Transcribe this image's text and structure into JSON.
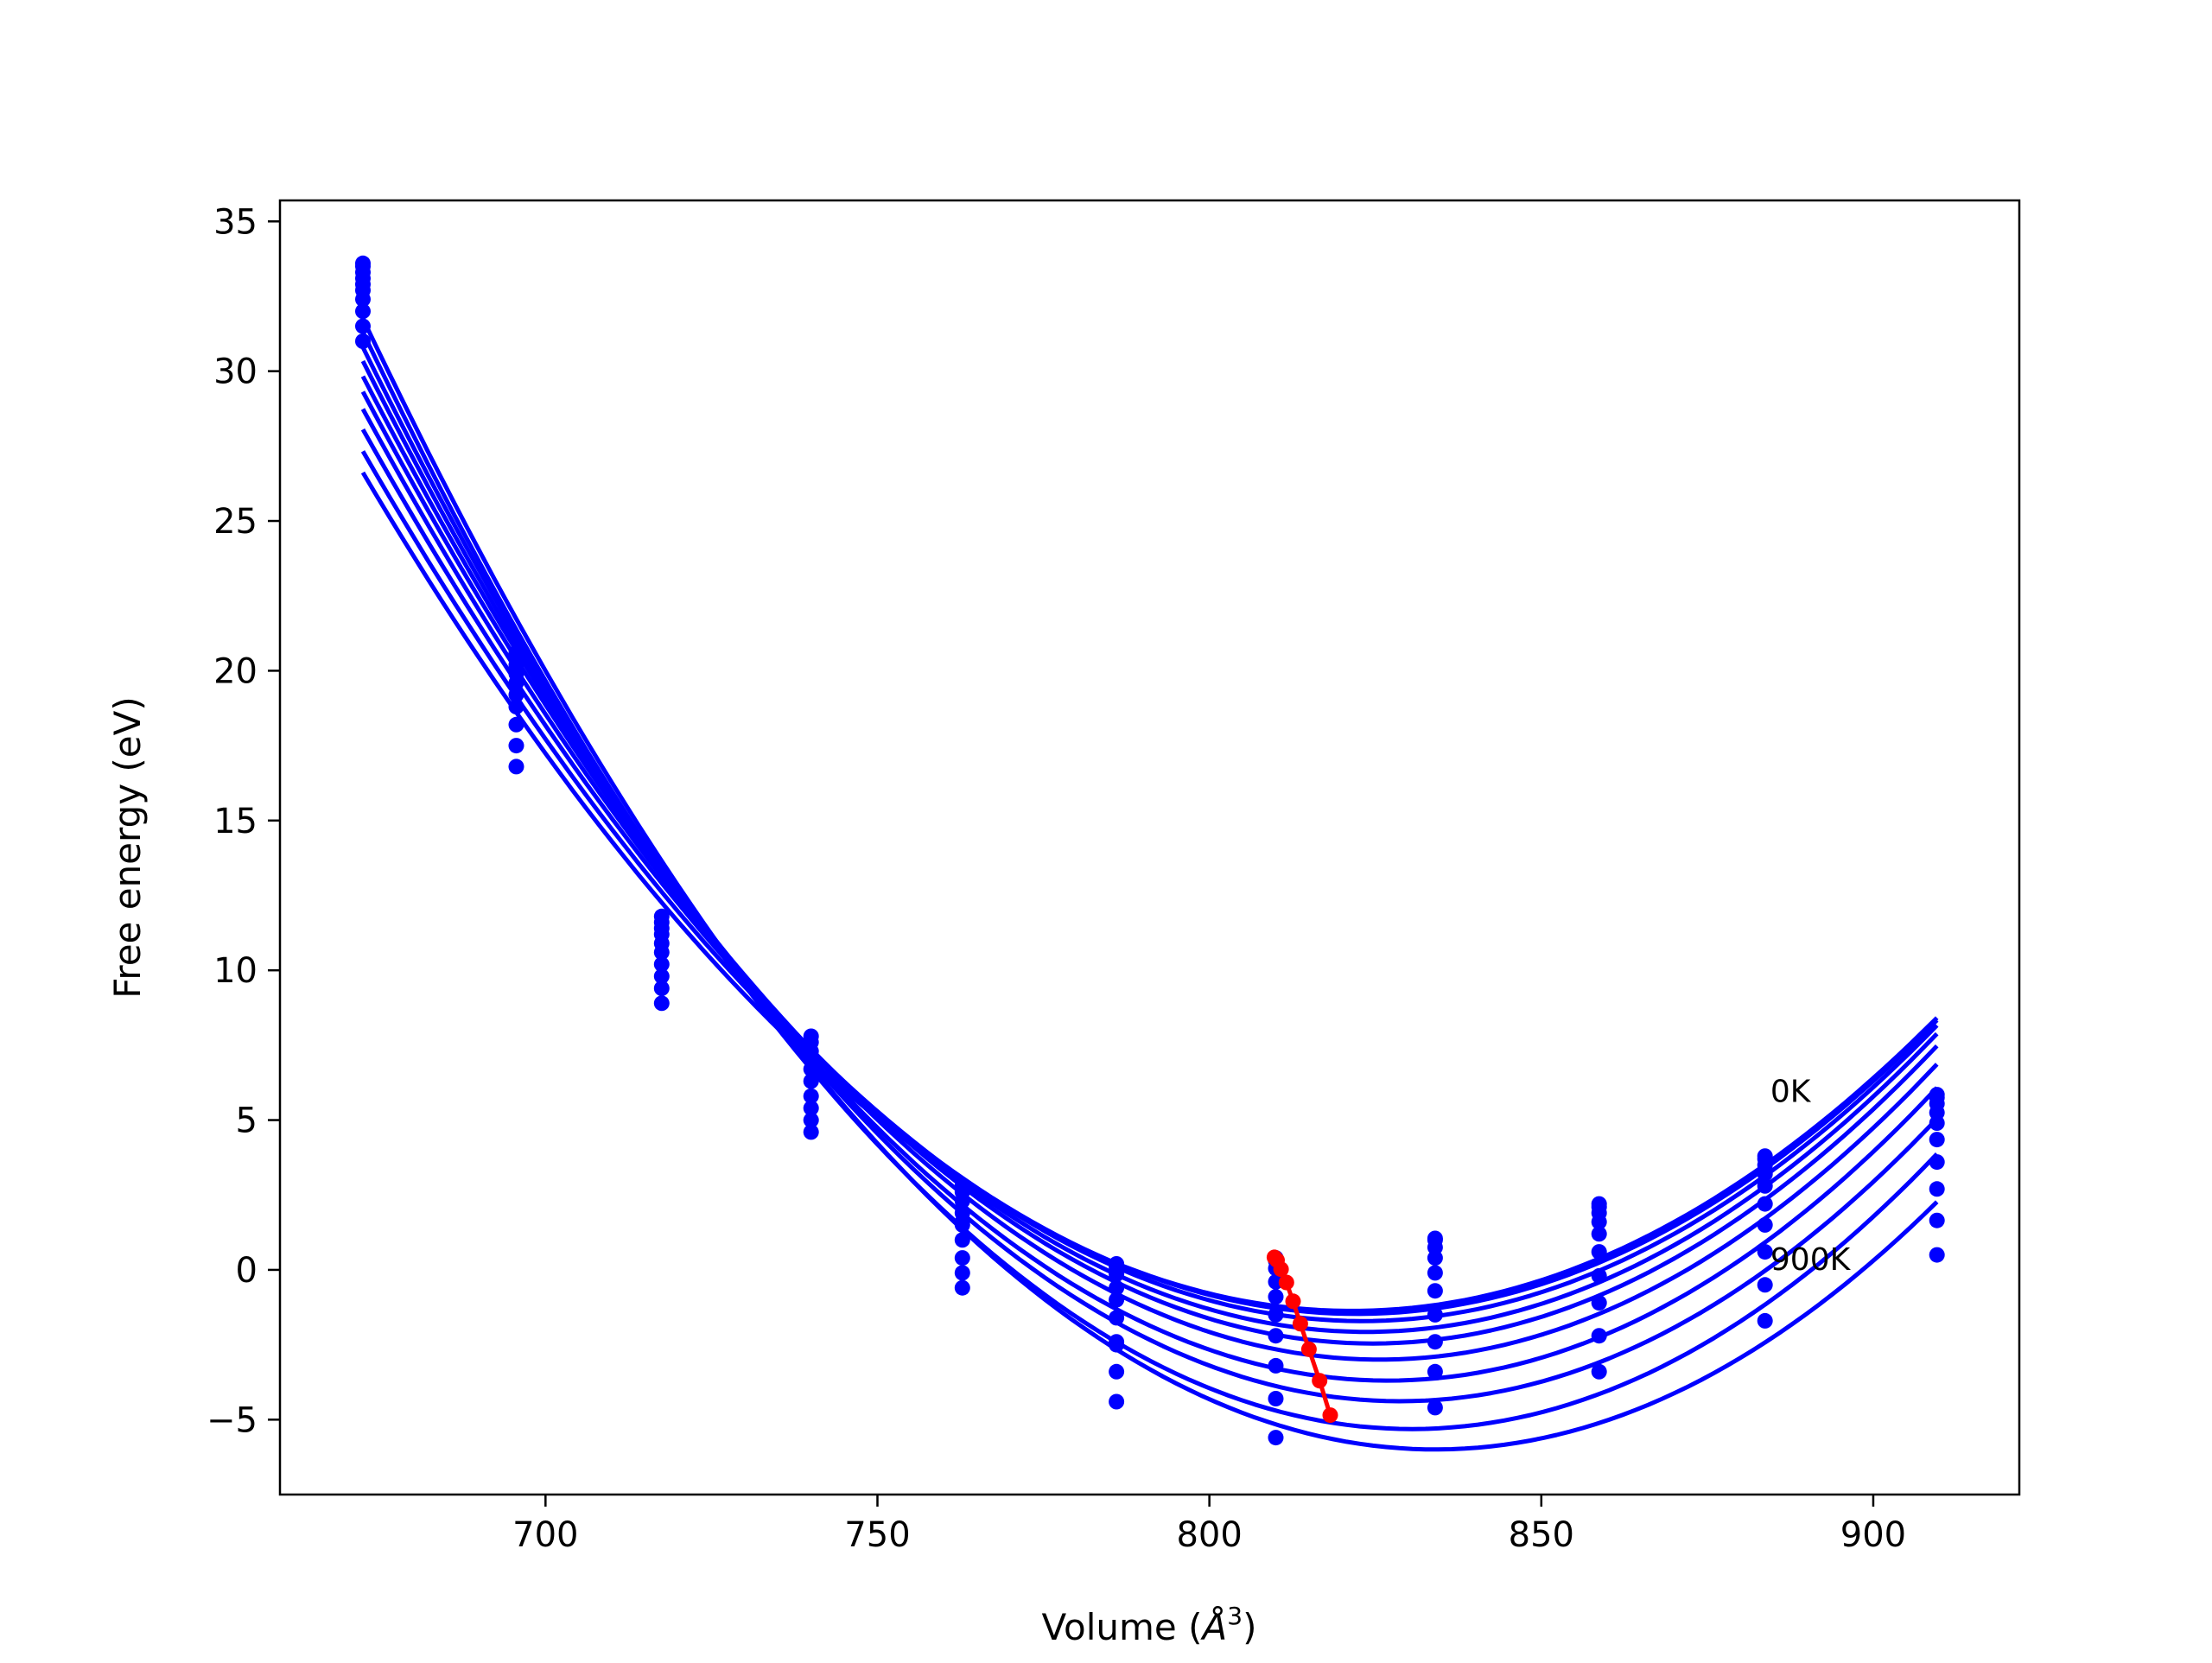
{
  "chart_data": {
    "type": "line",
    "title": "",
    "xlabel_main": "Volume (",
    "xlabel_unit_base": "Å",
    "xlabel_unit_sup": "3",
    "xlabel_close": ")",
    "ylabel": "Free energy (eV)",
    "xlim": [
      660,
      922
    ],
    "ylim": [
      -7.5,
      35.7
    ],
    "xticks": [
      700,
      750,
      800,
      850,
      900
    ],
    "yticks": [
      -5,
      0,
      5,
      10,
      15,
      20,
      25,
      30,
      35
    ],
    "xtick_labels": [
      "700",
      "750",
      "800",
      "850",
      "900"
    ],
    "ytick_labels": [
      "−5",
      "0",
      "5",
      "10",
      "15",
      "20",
      "25",
      "30",
      "35"
    ],
    "grid": false,
    "volumes": [
      672.5,
      695.6,
      717.5,
      740.0,
      762.8,
      786.0,
      810.0,
      834.0,
      858.7,
      883.7,
      909.6
    ],
    "fit_range": [
      672.5,
      909.6
    ],
    "series_color": "#0000ff",
    "min_color": "#ff0000",
    "series": [
      {
        "temperature_K": 0,
        "values": [
          31.0,
          16.8,
          8.9,
          4.6,
          2.8,
          0.2,
          0.4,
          1.05,
          2.2,
          3.8,
          5.85
        ]
      },
      {
        "temperature_K": 100,
        "values": [
          31.5,
          17.5,
          9.4,
          5.0,
          2.6,
          0.1,
          0.3,
          1.0,
          2.1,
          3.7,
          5.75
        ]
      },
      {
        "temperature_K": 200,
        "values": [
          32.0,
          18.2,
          9.8,
          5.4,
          2.3,
          -0.15,
          0.05,
          0.75,
          1.9,
          3.5,
          5.55
        ]
      },
      {
        "temperature_K": 300,
        "values": [
          32.4,
          18.8,
          10.2,
          5.8,
          1.9,
          -0.6,
          -0.4,
          0.4,
          1.6,
          3.2,
          5.25
        ]
      },
      {
        "temperature_K": 400,
        "values": [
          32.7,
          19.2,
          10.6,
          6.3,
          1.5,
          -1.0,
          -0.9,
          -0.1,
          1.2,
          2.8,
          4.9
        ]
      },
      {
        "temperature_K": 500,
        "values": [
          32.9,
          19.6,
          10.9,
          6.7,
          1.0,
          -1.6,
          -1.5,
          -0.7,
          0.6,
          2.2,
          4.35
        ]
      },
      {
        "temperature_K": 600,
        "values": [
          33.1,
          19.9,
          11.2,
          7.0,
          0.4,
          -2.4,
          -2.2,
          -1.5,
          -0.2,
          1.5,
          3.6
        ]
      },
      {
        "temperature_K": 700,
        "values": [
          33.3,
          20.2,
          11.4,
          7.3,
          -0.1,
          -2.5,
          -3.2,
          -2.4,
          -1.1,
          0.6,
          2.7
        ]
      },
      {
        "temperature_K": 800,
        "values": [
          33.5,
          20.4,
          11.6,
          7.6,
          -0.6,
          -3.4,
          -4.3,
          -3.4,
          -2.2,
          -0.5,
          1.65
        ]
      },
      {
        "temperature_K": 900,
        "values": [
          33.6,
          20.6,
          11.8,
          7.8,
          1.6,
          -4.4,
          -5.6,
          -4.6,
          -3.4,
          -1.7,
          0.5
        ]
      }
    ],
    "minima_path": {
      "name": "",
      "x": [
        809.8,
        810.2,
        810.8,
        811.6,
        812.6,
        813.7,
        815.0,
        816.6,
        818.2
      ],
      "y": [
        0.42,
        0.32,
        0.02,
        -0.42,
        -1.05,
        -1.8,
        -2.65,
        -3.7,
        -4.85
      ]
    },
    "annotations": [
      {
        "text": "0K",
        "x": 884.5,
        "y": 5.6
      },
      {
        "text": "900K",
        "x": 884.5,
        "y": 0.0
      }
    ]
  }
}
